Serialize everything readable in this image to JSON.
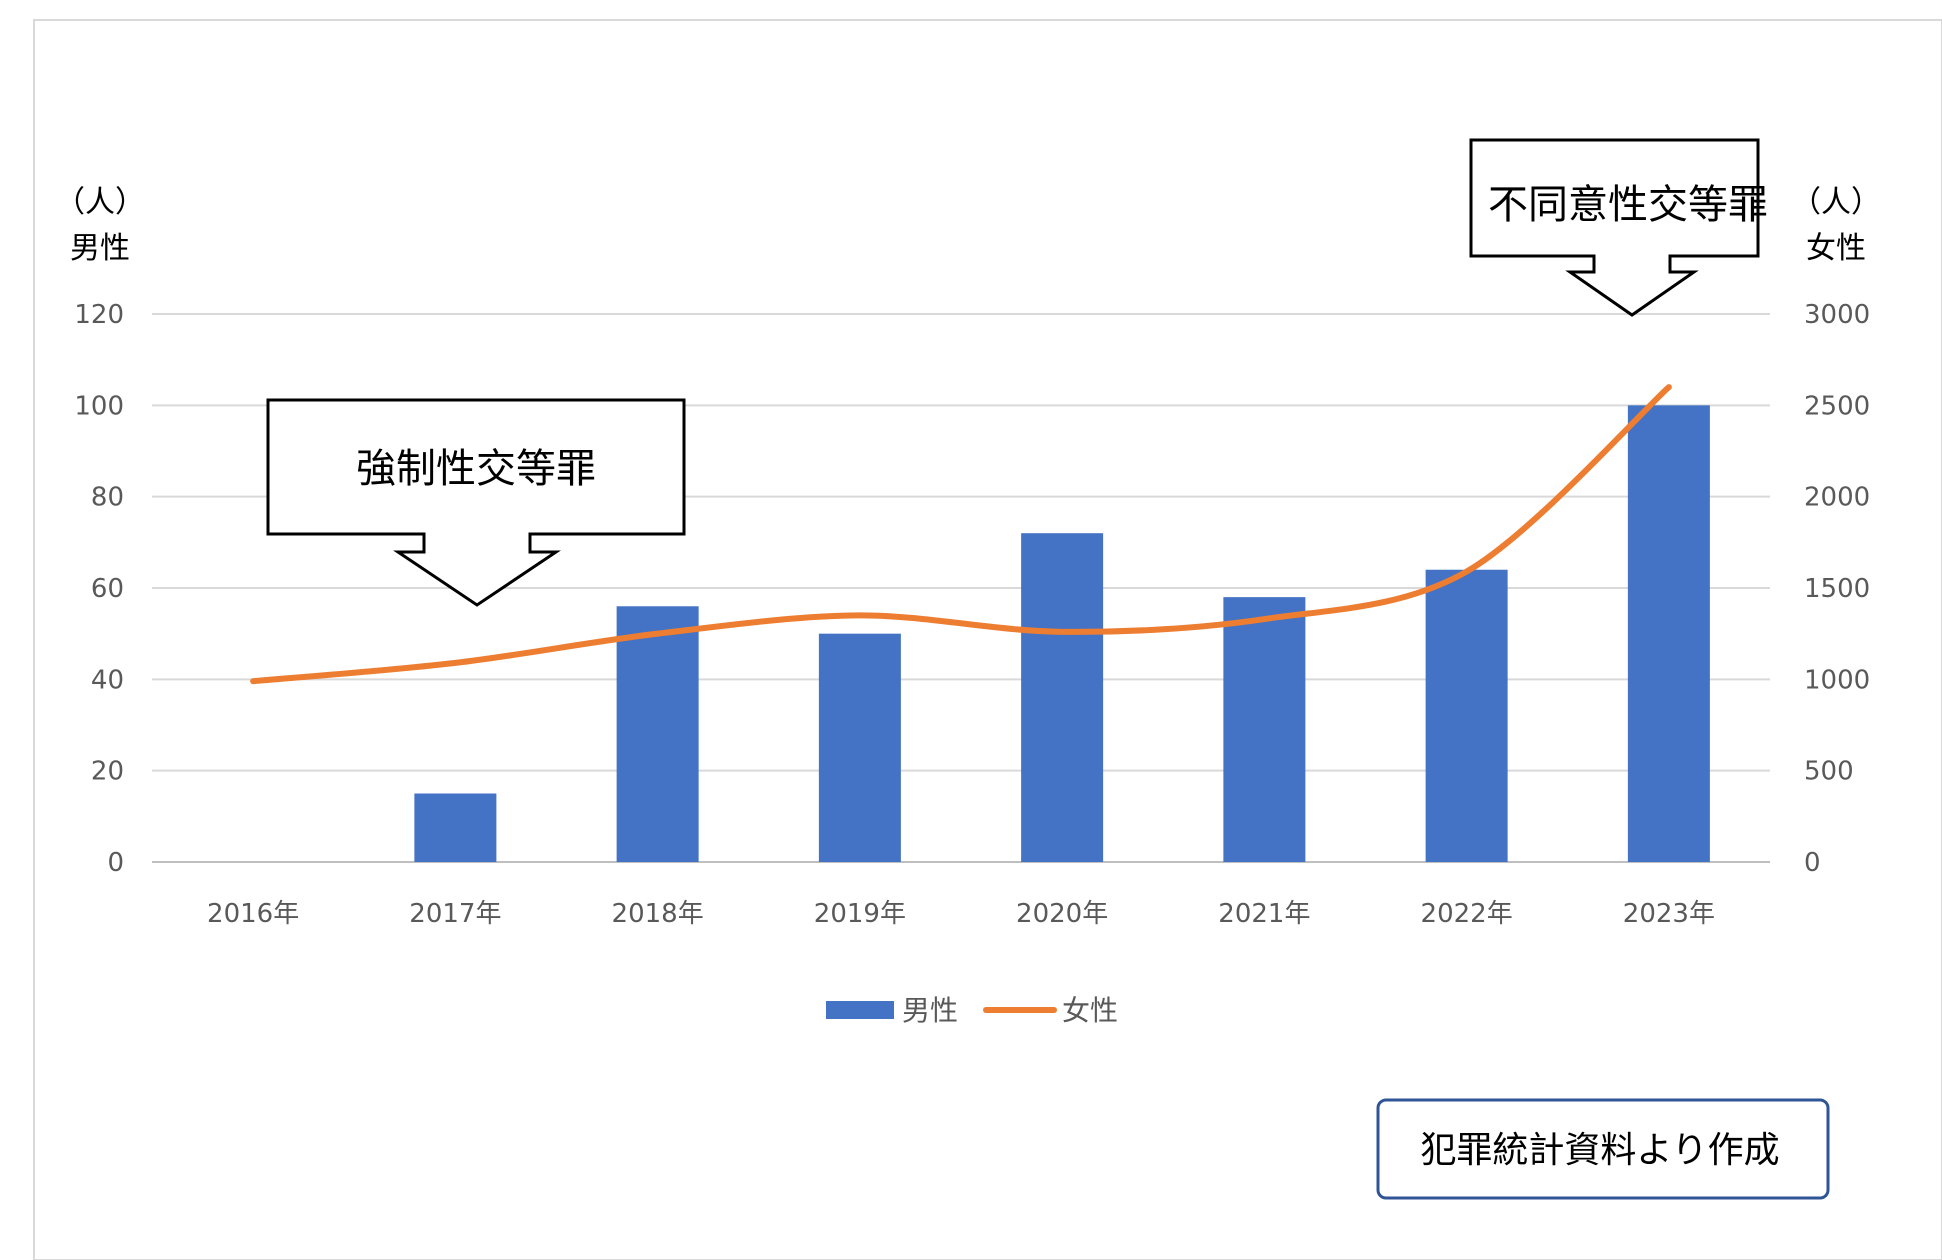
{
  "chart_data": {
    "type": "bar",
    "categories": [
      "2016年",
      "2017年",
      "2018年",
      "2019年",
      "2020年",
      "2021年",
      "2022年",
      "2023年"
    ],
    "series": [
      {
        "name": "男性",
        "type": "bar",
        "axis": "left",
        "color": "#4472C4",
        "values": [
          0,
          15,
          56,
          50,
          72,
          58,
          64,
          100
        ]
      },
      {
        "name": "女性",
        "type": "line",
        "axis": "right",
        "color": "#ED7D31",
        "values": [
          990,
          1090,
          1250,
          1350,
          1260,
          1330,
          1590,
          2600
        ]
      }
    ],
    "y_left": {
      "unit": "（人）",
      "label": "男性",
      "ylim": [
        0,
        120
      ],
      "ticks": [
        "0",
        "20",
        "40",
        "60",
        "80",
        "100",
        "120"
      ]
    },
    "y_right": {
      "unit": "（人）",
      "label": "女性",
      "ylim": [
        0,
        3000
      ],
      "ticks": [
        "0",
        "500",
        "1000",
        "1500",
        "2000",
        "2500",
        "3000"
      ]
    },
    "grid": true,
    "legend": {
      "placement": "bottom",
      "items": [
        "男性",
        "女性"
      ]
    },
    "annotations": [
      {
        "text": "強制性交等罪",
        "points_to": "2017年"
      },
      {
        "text": "不同意性交等罪",
        "points_to": "2023年"
      }
    ]
  },
  "source_note": "犯罪統計資料より作成"
}
